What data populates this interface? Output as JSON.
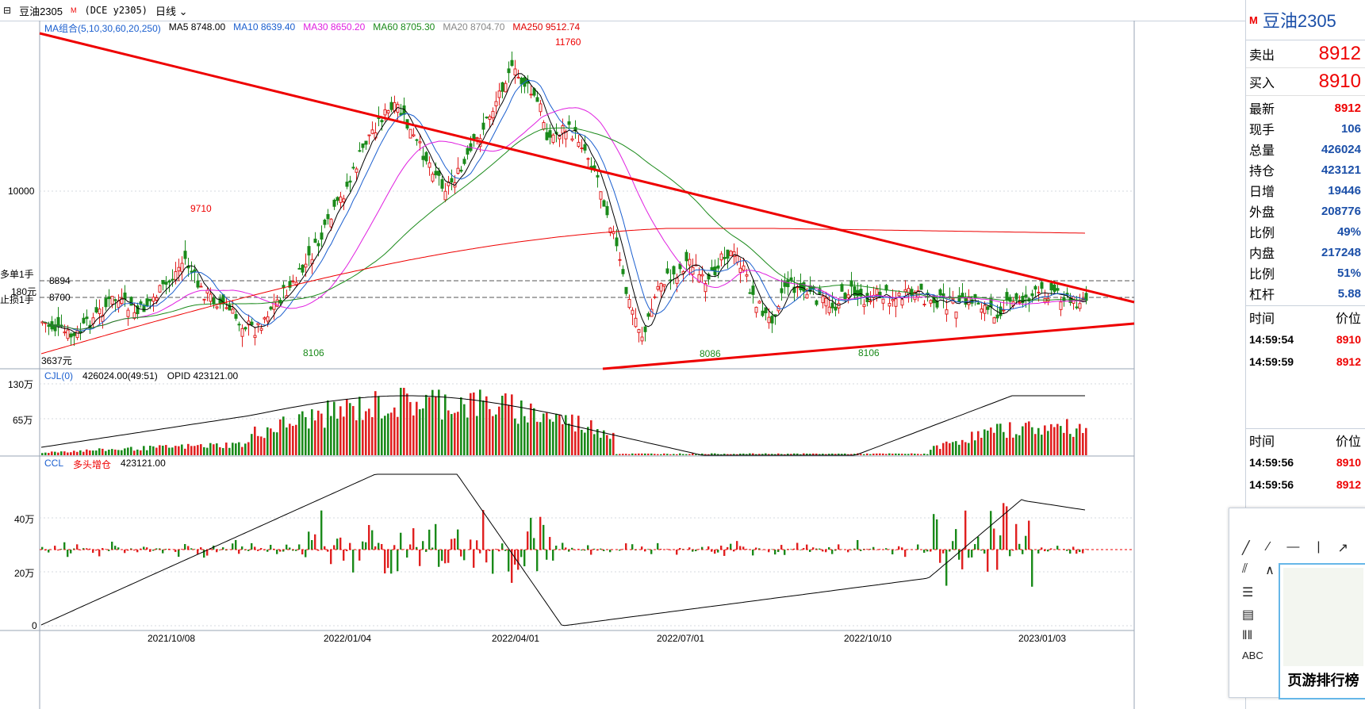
{
  "window": {
    "symbol": "豆油2305",
    "marker": "M",
    "code": "(DCE y2305)",
    "period": "日线"
  },
  "legends": {
    "ma": {
      "label": "MA组合(5,10,30,60,20,250)",
      "items": [
        {
          "text": "MA5 8748.00",
          "color": "#000000"
        },
        {
          "text": "MA10 8639.40",
          "color": "#1b5fcf"
        },
        {
          "text": "MA30 8650.20",
          "color": "#e020e0"
        },
        {
          "text": "MA60 8705.30",
          "color": "#1a8a1a"
        },
        {
          "text": "MA20 8704.70",
          "color": "#888888"
        },
        {
          "text": "MA250 9512.74",
          "color": "#e00000"
        }
      ]
    },
    "cjl": {
      "label": "CJL(0)",
      "value": "426024.00(49:51)",
      "opid": "OPID 423121.00"
    },
    "ccl": {
      "label": "CCL",
      "kind": "多头增仓",
      "value": "423121.00"
    }
  },
  "price_axis": {
    "labels": [
      "10000"
    ],
    "left_marks": [
      "多单1手",
      "180元",
      "止损1手",
      "3637元"
    ],
    "lines": [
      "8894",
      "8700"
    ]
  },
  "annotations": {
    "high": "11760",
    "peak2": "9710",
    "low1": "8106",
    "low2": "8086",
    "low3": "8106"
  },
  "volume_axis": [
    "130万",
    "65万"
  ],
  "oi_axis": [
    "40万",
    "20万",
    "0"
  ],
  "dates": [
    "2021/10/08",
    "2022/01/04",
    "2022/04/01",
    "2022/07/01",
    "2022/10/10",
    "2023/01/03"
  ],
  "panel": {
    "title_marker": "M",
    "title": "豆油2305",
    "sell_label": "卖出",
    "sell": "8912",
    "buy_label": "买入",
    "buy": "8910",
    "stats": [
      {
        "label": "最新",
        "value": "8912",
        "color": "red"
      },
      {
        "label": "现手",
        "value": "106",
        "color": "blue"
      },
      {
        "label": "总量",
        "value": "426024",
        "color": "blue"
      },
      {
        "label": "持仓",
        "value": "423121",
        "color": "blue"
      },
      {
        "label": "日增",
        "value": "19446",
        "color": "blue"
      },
      {
        "label": "外盘",
        "value": "208776",
        "color": "blue"
      },
      {
        "label": "比例",
        "value": "49%",
        "color": "blue"
      },
      {
        "label": "内盘",
        "value": "217248",
        "color": "blue"
      },
      {
        "label": "比例",
        "value": "51%",
        "color": "blue"
      },
      {
        "label": "杠杆",
        "value": "5.88",
        "color": "blue"
      }
    ],
    "ticks1_head": {
      "time": "时间",
      "price": "价位"
    },
    "ticks1": [
      {
        "time": "14:59:54",
        "price": "8910"
      },
      {
        "time": "14:59:59",
        "price": "8912"
      }
    ],
    "ticks2_head": {
      "time": "时间",
      "price": "价位"
    },
    "ticks2": [
      {
        "time": "14:59:56",
        "price": "8910"
      },
      {
        "time": "14:59:56",
        "price": "8912"
      }
    ]
  },
  "tools": {
    "abc": "ABC"
  },
  "popup": {
    "caption": "页游排行榜"
  }
}
